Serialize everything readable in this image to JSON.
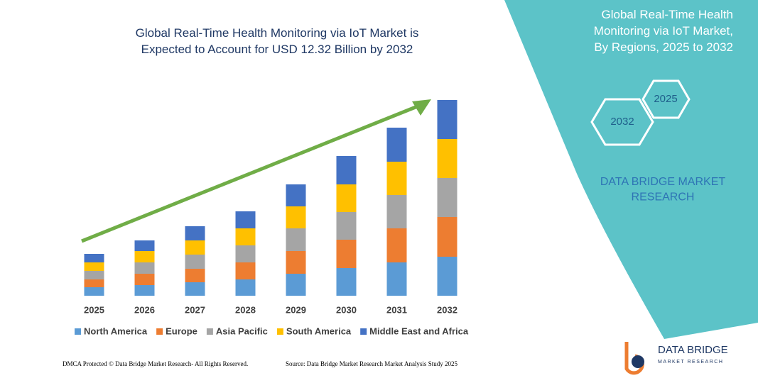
{
  "chart_data": {
    "type": "stacked_bar",
    "title": "Global Real-Time Health Monitoring via IoT Market is Expected to Account for USD 12.32 Billion by 2032",
    "categories": [
      "2025",
      "2026",
      "2027",
      "2028",
      "2029",
      "2030",
      "2031",
      "2032"
    ],
    "series": [
      {
        "name": "North America",
        "color": "#5b9bd5",
        "values": [
          12,
          15,
          19,
          23,
          31,
          39,
          47,
          55
        ]
      },
      {
        "name": "Europe",
        "color": "#ed7d31",
        "values": [
          11,
          16,
          19,
          24,
          32,
          40,
          48,
          56
        ]
      },
      {
        "name": "Asia Pacific",
        "color": "#a5a5a5",
        "values": [
          12,
          16,
          20,
          24,
          32,
          39,
          47,
          55
        ]
      },
      {
        "name": "South America",
        "color": "#ffc000",
        "values": [
          12,
          16,
          20,
          24,
          31,
          39,
          47,
          55
        ]
      },
      {
        "name": "Middle East and Africa",
        "color": "#4472c4",
        "values": [
          12,
          15,
          20,
          24,
          31,
          40,
          48,
          55
        ]
      }
    ],
    "ylim": [
      0,
      300
    ]
  },
  "panel": {
    "title": "Global Real-Time Health Monitoring via IoT Market, By Regions, 2025 to 2032",
    "hex_labels": [
      "2025",
      "2032"
    ],
    "brand": "DATA BRIDGE MARKET RESEARCH"
  },
  "footer": {
    "left": "DMCA Protected © Data Bridge Market Research- All Rights Reserved.",
    "right": "Source: Data Bridge Market Research Market Analysis Study 2025"
  },
  "logo": {
    "name": "DATA BRIDGE",
    "tagline": "MARKET RESEARCH"
  }
}
